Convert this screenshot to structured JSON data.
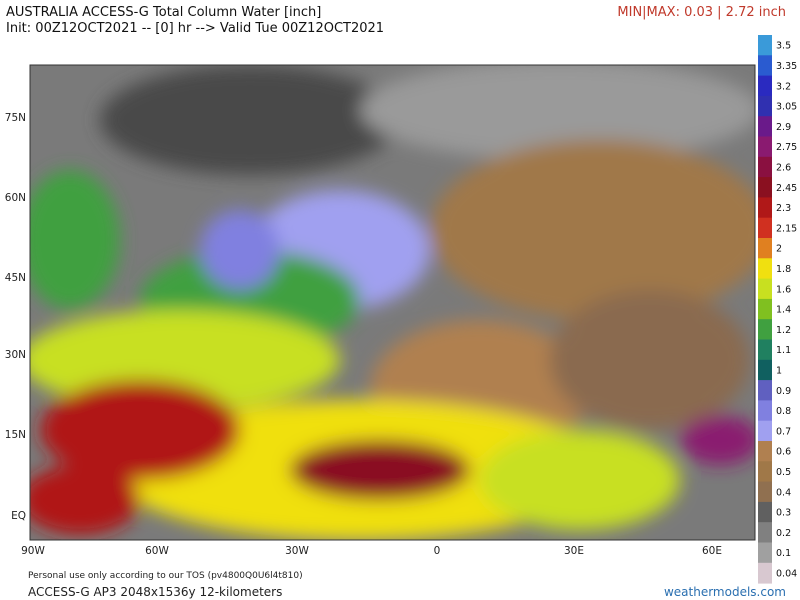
{
  "header": {
    "title": "AUSTRALIA ACCESS-G Total Column Water [inch]",
    "init": "Init: 00Z12OCT2021 -- [0] hr --> Valid Tue 00Z12OCT2021",
    "minmax": "MIN|MAX: 0.03 | 2.72 inch",
    "minmax_color": "#c0392b"
  },
  "map": {
    "lat_labels": [
      "75N",
      "60N",
      "45N",
      "30N",
      "15N",
      "EQ"
    ],
    "lon_labels": [
      "90W",
      "60W",
      "30W",
      "0",
      "30E",
      "60E"
    ]
  },
  "colorbar": {
    "ticks": [
      3.5,
      3.35,
      3.2,
      3.05,
      2.9,
      2.75,
      2.6,
      2.45,
      2.3,
      2.15,
      2,
      1.8,
      1.6,
      1.4,
      1.2,
      1.1,
      1,
      0.9,
      0.8,
      0.7,
      0.6,
      0.5,
      0.4,
      0.3,
      0.2,
      0.1,
      0.04
    ],
    "colors": [
      "#3a9ad9",
      "#2a5bd0",
      "#2a2ac0",
      "#3030b0",
      "#6a1a8a",
      "#8a1a70",
      "#8a1040",
      "#8a1020",
      "#b01818",
      "#d03020",
      "#e08020",
      "#f0e010",
      "#c8e020",
      "#80c020",
      "#40a040",
      "#208060",
      "#106060",
      "#6060c0",
      "#8080e0",
      "#a0a0f0",
      "#b08050",
      "#a07848",
      "#907050",
      "#606060",
      "#808080",
      "#a0a0a0",
      "#d8c8d0"
    ]
  },
  "footer": {
    "tos": "Personal use only according to our TOS (pv4800Q0U6l4t810)",
    "model": "ACCESS-G AP3 2048x1536y 12-kilometers",
    "site": "weathermodels.com",
    "site_color": "#2a6fb0"
  }
}
